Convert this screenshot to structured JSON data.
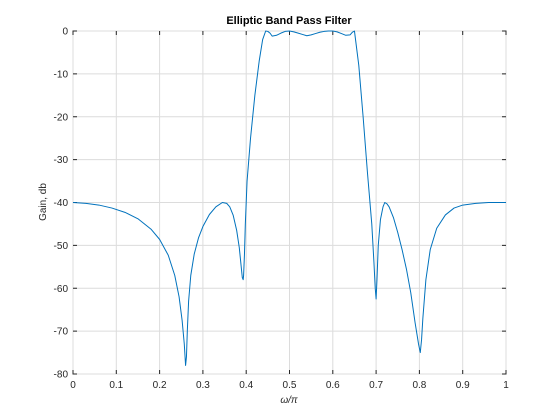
{
  "chart_data": {
    "type": "line",
    "title": "Elliptic Band Pass Filter",
    "xlabel": "ω/π",
    "ylabel": "Gain, db",
    "xlim": [
      0,
      1
    ],
    "ylim": [
      -80,
      0
    ],
    "xticks": [
      0,
      0.1,
      0.2,
      0.3,
      0.4,
      0.5,
      0.6,
      0.7,
      0.8,
      0.9,
      1
    ],
    "xtick_labels": [
      "0",
      "0.1",
      "0.2",
      "0.3",
      "0.4",
      "0.5",
      "0.6",
      "0.7",
      "0.8",
      "0.9",
      "1"
    ],
    "yticks": [
      0,
      -10,
      -20,
      -30,
      -40,
      -50,
      -60,
      -70,
      -80
    ],
    "ytick_labels": [
      "0",
      "-10",
      "-20",
      "-30",
      "-40",
      "-50",
      "-60",
      "-70",
      "-80"
    ],
    "grid": true,
    "line_color": "#0072BD",
    "grid_color": "#dcdcdc",
    "series": [
      {
        "x": [
          0.0,
          0.03,
          0.06,
          0.09,
          0.12,
          0.15,
          0.18,
          0.2,
          0.22,
          0.235,
          0.245,
          0.252,
          0.257,
          0.26,
          0.262,
          0.264,
          0.267,
          0.272,
          0.28,
          0.29,
          0.3,
          0.315,
          0.33,
          0.345,
          0.355,
          0.362,
          0.37,
          0.378,
          0.384,
          0.388,
          0.391,
          0.393,
          0.394,
          0.396,
          0.398,
          0.402,
          0.41,
          0.42,
          0.43,
          0.438,
          0.445,
          0.45,
          0.455,
          0.46,
          0.47,
          0.48,
          0.49,
          0.5,
          0.51,
          0.52,
          0.53,
          0.54,
          0.55,
          0.56,
          0.57,
          0.58,
          0.59,
          0.6,
          0.61,
          0.62,
          0.63,
          0.64,
          0.645,
          0.65,
          0.66,
          0.67,
          0.68,
          0.69,
          0.695,
          0.698,
          0.7,
          0.702,
          0.705,
          0.71,
          0.716,
          0.72,
          0.725,
          0.73,
          0.74,
          0.75,
          0.76,
          0.77,
          0.78,
          0.79,
          0.798,
          0.802,
          0.805,
          0.808,
          0.815,
          0.825,
          0.84,
          0.86,
          0.88,
          0.9,
          0.93,
          0.96,
          1.0
        ],
        "y": [
          -40,
          -40.2,
          -40.6,
          -41.3,
          -42.3,
          -43.8,
          -46.2,
          -48.6,
          -52.3,
          -57,
          -62,
          -67.5,
          -73,
          -78,
          -76,
          -70,
          -63,
          -57,
          -52,
          -48.2,
          -45.6,
          -42.8,
          -41,
          -40,
          -40.2,
          -41,
          -43,
          -46.5,
          -50.5,
          -54.5,
          -57.5,
          -58,
          -57,
          -52,
          -45,
          -35,
          -25,
          -15,
          -7,
          -2,
          0,
          -0.1,
          -0.5,
          -1.2,
          -1,
          -0.5,
          -0.1,
          0,
          -0.2,
          -0.5,
          -0.8,
          -1.1,
          -0.9,
          -0.6,
          -0.3,
          -0.1,
          0,
          0,
          -0.2,
          -0.6,
          -1,
          -0.9,
          -0.3,
          0,
          -8,
          -20,
          -33,
          -45,
          -54,
          -60,
          -62.5,
          -58,
          -50,
          -44,
          -41,
          -40,
          -40.3,
          -41,
          -43.5,
          -47,
          -51,
          -55.5,
          -61,
          -68,
          -73,
          -75,
          -72,
          -67,
          -58,
          -51,
          -46,
          -42.9,
          -41.3,
          -40.6,
          -40.2,
          -40,
          -40
        ]
      }
    ]
  }
}
